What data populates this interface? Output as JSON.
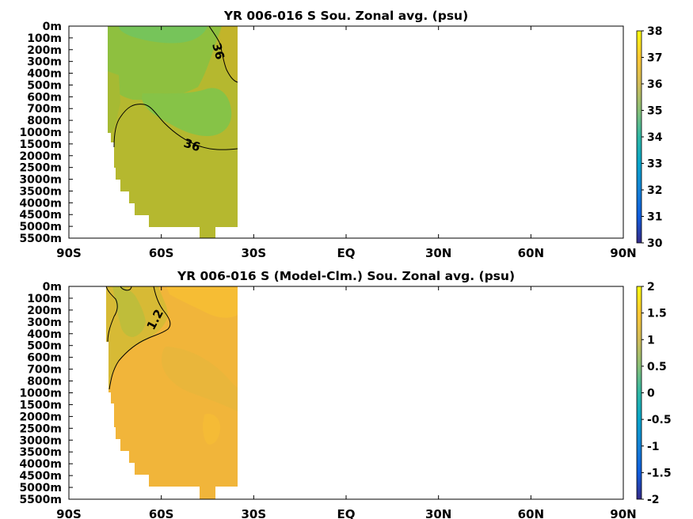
{
  "chart_data": [
    {
      "type": "heatmap",
      "title": "YR 006-016 S Sou. Zonal avg. (psu)",
      "xlabel": "",
      "ylabel": "",
      "x_ticks": [
        "90S",
        "60S",
        "30S",
        "EQ",
        "30N",
        "60N",
        "90N"
      ],
      "xlim": [
        -90,
        90
      ],
      "y_ticks": [
        "0m",
        "100m",
        "200m",
        "300m",
        "400m",
        "500m",
        "600m",
        "700m",
        "800m",
        "1000m",
        "1500m",
        "2000m",
        "2500m",
        "3000m",
        "3500m",
        "4000m",
        "4500m",
        "5000m",
        "5500m"
      ],
      "colorbar": {
        "min": 30,
        "max": 38,
        "ticks": [
          "30",
          "31",
          "32",
          "33",
          "34",
          "35",
          "36",
          "37",
          "38"
        ],
        "colormap": "parula"
      },
      "data_extent": {
        "lat_min": -78,
        "lat_max": -35
      },
      "contours": [
        {
          "value": 36,
          "label": "36",
          "upper_label": "36"
        }
      ],
      "field_summary": [
        {
          "region": "surface 75S-55S",
          "value": 34.9
        },
        {
          "region": "shelf 500-800m near 75S",
          "value": 35.5
        },
        {
          "region": "core 700m 45S",
          "value": 35.3
        },
        {
          "region": "upper 40S",
          "value": 36.1
        },
        {
          "region": "deep below 1500m",
          "value": 35.9
        }
      ]
    },
    {
      "type": "heatmap",
      "title": "YR 006-016 S (Model-Clm.) Sou. Zonal avg. (psu)",
      "xlabel": "",
      "ylabel": "",
      "x_ticks": [
        "90S",
        "60S",
        "30S",
        "EQ",
        "30N",
        "60N",
        "90N"
      ],
      "xlim": [
        -90,
        90
      ],
      "y_ticks": [
        "0m",
        "100m",
        "200m",
        "300m",
        "400m",
        "500m",
        "600m",
        "700m",
        "800m",
        "1000m",
        "1500m",
        "2000m",
        "2500m",
        "3000m",
        "3500m",
        "4000m",
        "4500m",
        "5000m",
        "5500m"
      ],
      "colorbar": {
        "min": -2,
        "max": 2,
        "ticks": [
          "-2",
          "-1.5",
          "-1",
          "-0.5",
          "0",
          "0.5",
          "1",
          "1.5",
          "2"
        ],
        "colormap": "parula"
      },
      "data_extent": {
        "lat_min": -78,
        "lat_max": -35
      },
      "contours": [
        {
          "value": 1.2,
          "label": "1.2"
        }
      ],
      "field_summary": [
        {
          "region": "upper 75S-65S",
          "value": 1.0
        },
        {
          "region": "interior",
          "value": 1.45
        },
        {
          "region": "surface 55S-35S",
          "value": 1.6
        }
      ]
    }
  ]
}
